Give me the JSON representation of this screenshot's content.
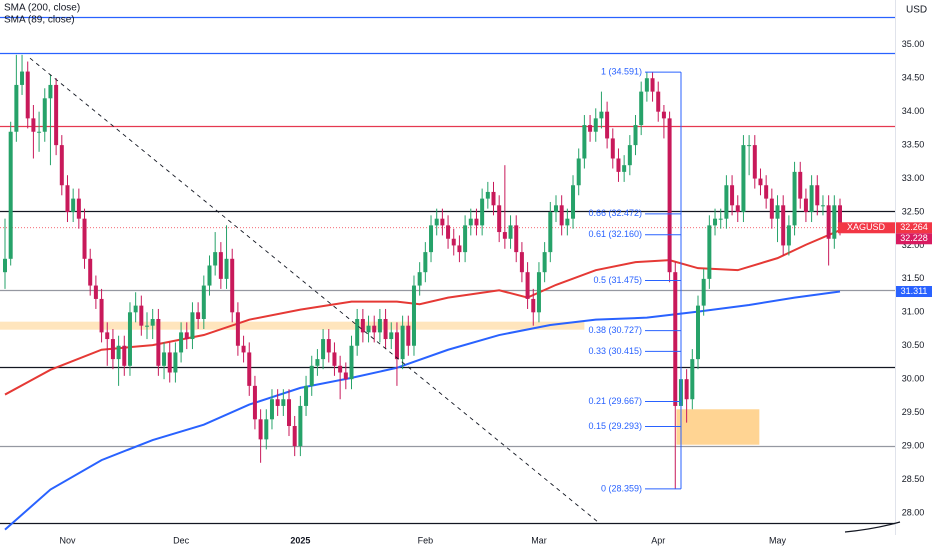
{
  "chart_data": {
    "type": "candlestick",
    "symbol": "XAGUSD",
    "y_unit": "USD",
    "up_color": "#26a269",
    "down_color": "#c8195a",
    "ylim": [
      27.67,
      35.67
    ],
    "yticks": [
      {
        "value": 28,
        "label": "28.00"
      },
      {
        "value": 28.5,
        "label": "28.50"
      },
      {
        "value": 29,
        "label": "29.00"
      },
      {
        "value": 29.5,
        "label": "29.50"
      },
      {
        "value": 30,
        "label": "30.00"
      },
      {
        "value": 30.5,
        "label": "30.50"
      },
      {
        "value": 31,
        "label": "31.00"
      },
      {
        "value": 31.5,
        "label": "31.50"
      },
      {
        "value": 32,
        "label": "32.00"
      },
      {
        "value": 32.5,
        "label": "32.50"
      },
      {
        "value": 33,
        "label": "33.00"
      },
      {
        "value": 33.5,
        "label": "33.50"
      },
      {
        "value": 34,
        "label": "34.00"
      },
      {
        "value": 34.5,
        "label": "34.50"
      },
      {
        "value": 35,
        "label": "35.00"
      }
    ],
    "categories": [
      null,
      null,
      null,
      null,
      null,
      null,
      null,
      null,
      null,
      null,
      null,
      "Nov",
      null,
      null,
      null,
      null,
      null,
      null,
      null,
      null,
      null,
      null,
      null,
      null,
      null,
      null,
      null,
      null,
      null,
      null,
      null,
      "Dec",
      null,
      null,
      null,
      null,
      null,
      null,
      null,
      null,
      null,
      null,
      null,
      null,
      null,
      null,
      null,
      null,
      null,
      null,
      null,
      null,
      "2025",
      null,
      null,
      null,
      null,
      null,
      null,
      null,
      null,
      null,
      null,
      null,
      null,
      null,
      null,
      null,
      null,
      null,
      null,
      null,
      null,
      null,
      "Feb",
      null,
      null,
      null,
      null,
      null,
      null,
      null,
      null,
      null,
      null,
      null,
      null,
      null,
      null,
      null,
      null,
      null,
      null,
      null,
      "Mar",
      null,
      null,
      null,
      null,
      null,
      null,
      null,
      null,
      null,
      null,
      null,
      null,
      null,
      null,
      null,
      null,
      null,
      null,
      null,
      null,
      "Apr",
      null,
      null,
      null,
      null,
      null,
      null,
      null,
      null,
      null,
      null,
      null,
      null,
      null,
      null,
      null,
      null,
      null,
      null,
      null,
      null,
      "May",
      null,
      null,
      null,
      null,
      null,
      null,
      null,
      null,
      null,
      null,
      null
    ],
    "ohlc": [
      [
        31.6,
        32.4,
        31.35,
        31.8
      ],
      [
        31.8,
        33.85,
        31.7,
        33.7
      ],
      [
        33.7,
        34.85,
        33.55,
        34.4
      ],
      [
        34.4,
        34.85,
        34.25,
        34.6
      ],
      [
        34.6,
        34.75,
        33.75,
        33.9
      ],
      [
        33.9,
        34.1,
        33.3,
        33.7
      ],
      [
        33.7,
        34.0,
        33.4,
        33.7
      ],
      [
        33.7,
        34.35,
        33.55,
        34.2
      ],
      [
        34.2,
        34.55,
        33.2,
        34.4
      ],
      [
        34.4,
        34.5,
        33.35,
        33.5
      ],
      [
        33.5,
        33.65,
        32.75,
        32.9
      ],
      [
        32.9,
        33.05,
        32.35,
        32.5
      ],
      [
        32.5,
        32.85,
        32.35,
        32.7
      ],
      [
        32.7,
        32.85,
        32.25,
        32.4
      ],
      [
        32.4,
        32.55,
        31.65,
        31.8
      ],
      [
        31.8,
        31.95,
        31.25,
        31.4
      ],
      [
        31.4,
        31.55,
        31.05,
        31.2
      ],
      [
        31.2,
        31.35,
        30.55,
        30.7
      ],
      [
        30.7,
        30.85,
        30.2,
        30.6
      ],
      [
        30.6,
        30.75,
        30.15,
        30.3
      ],
      [
        30.3,
        30.65,
        29.9,
        30.5
      ],
      [
        30.5,
        30.65,
        30.05,
        30.2
      ],
      [
        30.2,
        31.15,
        30.05,
        31.0
      ],
      [
        31.0,
        31.3,
        30.85,
        31.1
      ],
      [
        31.1,
        31.25,
        30.65,
        30.8
      ],
      [
        30.8,
        31.0,
        30.6,
        30.8
      ],
      [
        30.8,
        31.05,
        30.6,
        30.9
      ],
      [
        30.9,
        31.05,
        30.05,
        30.2
      ],
      [
        30.2,
        30.55,
        30.0,
        30.4
      ],
      [
        30.4,
        30.55,
        29.95,
        30.1
      ],
      [
        30.1,
        30.55,
        29.95,
        30.4
      ],
      [
        30.4,
        30.85,
        30.25,
        30.7
      ],
      [
        30.7,
        30.85,
        30.45,
        30.6
      ],
      [
        30.6,
        31.15,
        30.45,
        31.0
      ],
      [
        31.0,
        31.15,
        30.75,
        30.9
      ],
      [
        30.9,
        31.55,
        30.75,
        31.4
      ],
      [
        31.4,
        31.85,
        31.25,
        31.7
      ],
      [
        31.7,
        32.2,
        31.55,
        31.9
      ],
      [
        31.9,
        32.05,
        31.35,
        31.5
      ],
      [
        31.5,
        32.3,
        31.35,
        31.8
      ],
      [
        31.8,
        31.95,
        30.85,
        31.0
      ],
      [
        31.0,
        31.15,
        30.35,
        30.5
      ],
      [
        30.5,
        30.65,
        30.25,
        30.4
      ],
      [
        30.4,
        30.55,
        29.75,
        29.9
      ],
      [
        29.9,
        30.05,
        29.25,
        29.4
      ],
      [
        29.4,
        29.55,
        28.75,
        29.1
      ],
      [
        29.1,
        29.55,
        28.95,
        29.4
      ],
      [
        29.4,
        29.85,
        29.25,
        29.7
      ],
      [
        29.7,
        29.85,
        29.45,
        29.6
      ],
      [
        29.6,
        29.85,
        29.45,
        29.7
      ],
      [
        29.7,
        29.85,
        29.15,
        29.3
      ],
      [
        29.3,
        29.45,
        28.85,
        29.0
      ],
      [
        29.0,
        29.75,
        28.85,
        29.6
      ],
      [
        29.6,
        30.05,
        29.45,
        29.9
      ],
      [
        29.9,
        30.35,
        29.75,
        30.2
      ],
      [
        30.2,
        30.45,
        30.05,
        30.3
      ],
      [
        30.3,
        30.75,
        30.15,
        30.6
      ],
      [
        30.6,
        30.75,
        30.25,
        30.4
      ],
      [
        30.4,
        30.55,
        30.05,
        30.2
      ],
      [
        30.2,
        30.35,
        29.7,
        30.1
      ],
      [
        30.1,
        30.25,
        29.85,
        30.0
      ],
      [
        30.0,
        30.65,
        29.85,
        30.5
      ],
      [
        30.5,
        31.05,
        30.35,
        30.9
      ],
      [
        30.9,
        31.05,
        30.55,
        30.7
      ],
      [
        30.7,
        30.95,
        30.55,
        30.8
      ],
      [
        30.8,
        30.95,
        30.55,
        30.7
      ],
      [
        30.7,
        31.05,
        30.55,
        30.9
      ],
      [
        30.9,
        31.05,
        30.45,
        30.6
      ],
      [
        30.6,
        30.85,
        30.45,
        30.7
      ],
      [
        30.7,
        30.85,
        29.9,
        30.3
      ],
      [
        30.3,
        30.95,
        30.15,
        30.8
      ],
      [
        30.8,
        30.95,
        30.35,
        30.5
      ],
      [
        30.5,
        31.55,
        30.35,
        31.4
      ],
      [
        31.4,
        31.75,
        31.25,
        31.6
      ],
      [
        31.6,
        32.05,
        31.45,
        31.9
      ],
      [
        31.9,
        32.45,
        31.75,
        32.3
      ],
      [
        32.3,
        32.55,
        32.15,
        32.4
      ],
      [
        32.4,
        32.55,
        32.15,
        32.3
      ],
      [
        32.3,
        32.45,
        31.95,
        32.1
      ],
      [
        32.1,
        32.25,
        31.85,
        32.0
      ],
      [
        32.0,
        32.15,
        31.75,
        31.9
      ],
      [
        31.9,
        32.45,
        31.75,
        32.3
      ],
      [
        32.3,
        32.55,
        32.15,
        32.4
      ],
      [
        32.4,
        32.55,
        32.15,
        32.3
      ],
      [
        32.3,
        32.85,
        32.15,
        32.7
      ],
      [
        32.7,
        32.95,
        32.55,
        32.8
      ],
      [
        32.8,
        32.95,
        32.45,
        32.6
      ],
      [
        32.6,
        32.75,
        32.05,
        32.2
      ],
      [
        32.2,
        33.2,
        31.95,
        32.1
      ],
      [
        32.1,
        32.45,
        31.95,
        32.3
      ],
      [
        32.3,
        32.45,
        31.75,
        31.9
      ],
      [
        31.9,
        32.05,
        31.45,
        31.6
      ],
      [
        31.6,
        31.75,
        31.05,
        31.2
      ],
      [
        31.2,
        31.35,
        30.8,
        31.0
      ],
      [
        31.0,
        31.75,
        30.85,
        31.6
      ],
      [
        31.6,
        32.05,
        31.45,
        31.9
      ],
      [
        31.9,
        32.65,
        31.75,
        32.5
      ],
      [
        32.5,
        32.75,
        32.35,
        32.6
      ],
      [
        32.6,
        32.75,
        32.15,
        32.3
      ],
      [
        32.3,
        32.55,
        32.15,
        32.4
      ],
      [
        32.4,
        33.05,
        32.25,
        32.9
      ],
      [
        32.9,
        33.45,
        32.75,
        33.3
      ],
      [
        33.3,
        33.95,
        33.15,
        33.8
      ],
      [
        33.8,
        33.95,
        33.55,
        33.7
      ],
      [
        33.7,
        34.05,
        33.55,
        33.9
      ],
      [
        33.9,
        34.3,
        33.75,
        34.0
      ],
      [
        34.0,
        34.15,
        33.45,
        33.6
      ],
      [
        33.6,
        33.75,
        33.15,
        33.3
      ],
      [
        33.3,
        33.45,
        32.95,
        33.1
      ],
      [
        33.1,
        33.35,
        32.95,
        33.2
      ],
      [
        33.2,
        33.65,
        33.05,
        33.5
      ],
      [
        33.5,
        33.95,
        33.35,
        33.8
      ],
      [
        33.8,
        34.45,
        33.65,
        34.3
      ],
      [
        34.3,
        34.59,
        34.15,
        34.5
      ],
      [
        34.5,
        34.59,
        34.15,
        34.3
      ],
      [
        34.3,
        34.45,
        33.85,
        34.0
      ],
      [
        34.0,
        34.1,
        33.6,
        33.9
      ],
      [
        33.9,
        34.0,
        31.45,
        31.6
      ],
      [
        31.6,
        31.75,
        28.36,
        29.6
      ],
      [
        29.6,
        30.15,
        29.25,
        30.0
      ],
      [
        30.0,
        30.15,
        29.35,
        29.7
      ],
      [
        29.7,
        30.45,
        29.55,
        30.3
      ],
      [
        30.3,
        31.25,
        30.15,
        31.1
      ],
      [
        31.1,
        31.65,
        30.95,
        31.5
      ],
      [
        31.5,
        32.45,
        31.35,
        32.3
      ],
      [
        32.3,
        32.55,
        32.15,
        32.4
      ],
      [
        32.4,
        32.55,
        32.25,
        32.4
      ],
      [
        32.4,
        33.05,
        32.25,
        32.9
      ],
      [
        32.9,
        33.05,
        32.45,
        32.6
      ],
      [
        32.6,
        32.75,
        32.35,
        32.5
      ],
      [
        32.5,
        33.65,
        32.35,
        33.5
      ],
      [
        33.5,
        33.65,
        33.05,
        33.5
      ],
      [
        33.5,
        33.65,
        32.85,
        33.0
      ],
      [
        33.0,
        33.15,
        32.75,
        32.9
      ],
      [
        32.9,
        33.05,
        32.55,
        32.7
      ],
      [
        32.7,
        32.85,
        32.25,
        32.4
      ],
      [
        32.4,
        32.75,
        32.05,
        32.6
      ],
      [
        32.6,
        32.75,
        31.85,
        32.0
      ],
      [
        32.0,
        32.45,
        31.85,
        32.3
      ],
      [
        32.3,
        33.25,
        32.15,
        33.1
      ],
      [
        33.1,
        33.25,
        32.55,
        32.7
      ],
      [
        32.7,
        32.85,
        32.35,
        32.5
      ],
      [
        32.5,
        33.05,
        32.35,
        32.9
      ],
      [
        32.9,
        33.05,
        32.45,
        32.6
      ],
      [
        32.6,
        32.75,
        32.45,
        32.6
      ],
      [
        32.6,
        32.75,
        31.7,
        32.1
      ],
      [
        32.1,
        32.75,
        31.95,
        32.6
      ],
      [
        32.6,
        32.7,
        32.15,
        32.264
      ]
    ],
    "lines": [
      {
        "name": "SMA (200, close)",
        "color": "#2962ff",
        "x": [
          0,
          8,
          17,
          26,
          35,
          43,
          52,
          61,
          69,
          78,
          87,
          96,
          104,
          113,
          122,
          131,
          139,
          147
        ],
        "values": [
          27.75,
          28.35,
          28.79,
          29.09,
          29.32,
          29.62,
          29.87,
          30.02,
          30.17,
          30.44,
          30.66,
          30.81,
          30.89,
          30.92,
          31.01,
          31.11,
          31.22,
          31.311
        ]
      },
      {
        "name": "SMA (89, close)",
        "color": "#e53935",
        "x": [
          0,
          8,
          17,
          26,
          35,
          43,
          52,
          61,
          69,
          73,
          78,
          87,
          92,
          97,
          104,
          111,
          117,
          122,
          129,
          136,
          141,
          147
        ],
        "values": [
          29.77,
          30.14,
          30.44,
          30.51,
          30.66,
          30.89,
          31.04,
          31.16,
          31.16,
          31.12,
          31.22,
          31.33,
          31.22,
          31.41,
          31.63,
          31.75,
          31.78,
          31.66,
          31.63,
          31.81,
          32.01,
          32.228
        ]
      }
    ],
    "levels": [
      {
        "value": 35.42,
        "color": "#2962ff"
      },
      {
        "value": 34.88,
        "color": "#2962ff"
      },
      {
        "value": 33.79,
        "color": "#e53950"
      },
      {
        "value": 32.515,
        "color": "#131722"
      },
      {
        "value": 31.33,
        "color": "#9598a1"
      },
      {
        "value": 30.18,
        "color": "#131722"
      },
      {
        "value": 29.0,
        "color": "#9598a1"
      },
      {
        "value": 27.85,
        "color": "#131722"
      }
    ],
    "zones": [
      {
        "x": [
          -1,
          102
        ],
        "values": [
          30.74,
          30.86
        ],
        "color": "#ffe0b2"
      },
      {
        "x": [
          118.2,
          132.8
        ],
        "values": [
          29.02,
          29.55
        ],
        "color": "#ffcc80"
      }
    ],
    "trendline": {
      "x": [
        4.4,
        104.6
      ],
      "values": [
        34.8,
        27.85
      ]
    },
    "fib": [
      {
        "label": "1 (34.591)",
        "value": 34.591
      },
      {
        "label": "0.66 (32.472)",
        "value": 32.472
      },
      {
        "label": "0.61 (32.160)",
        "value": 32.16
      },
      {
        "label": "0.5 (31.475)",
        "value": 31.475
      },
      {
        "label": "0.38 (30.727)",
        "value": 30.727
      },
      {
        "label": "0.33 (30.415)",
        "value": 30.415
      },
      {
        "label": "0.21 (29.667)",
        "value": 29.667
      },
      {
        "label": "0.15 (29.293)",
        "value": 29.293
      },
      {
        "label": "0 (28.359)",
        "value": 28.359
      }
    ],
    "fib_color": "#2962ff",
    "price_tags": [
      {
        "value": 32.264,
        "color": "#f23645"
      },
      {
        "value": 32.228,
        "color": "#d81b60"
      },
      {
        "value": 31.311,
        "color": "#2962ff"
      }
    ]
  }
}
